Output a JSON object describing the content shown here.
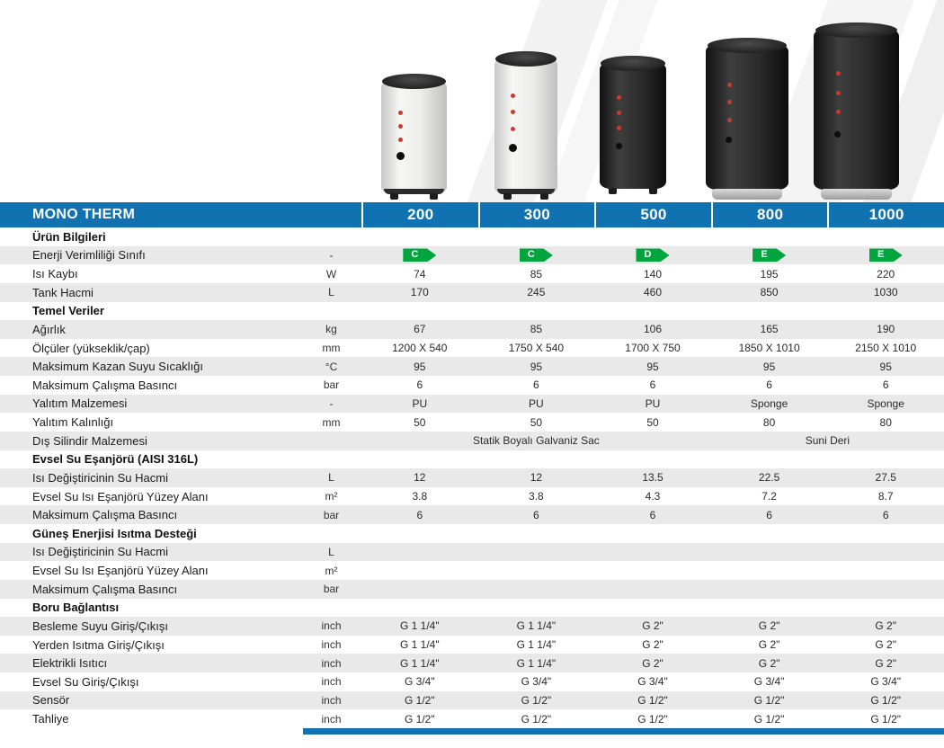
{
  "header": {
    "title": "MONO THERM",
    "models": [
      "200",
      "300",
      "500",
      "800",
      "1000"
    ],
    "accent_color": "#1172b1"
  },
  "energy": {
    "badge_color": "#00a53e"
  },
  "products": [
    {
      "model": "200",
      "body_color": "white"
    },
    {
      "model": "300",
      "body_color": "white"
    },
    {
      "model": "500",
      "body_color": "black"
    },
    {
      "model": "800",
      "body_color": "black"
    },
    {
      "model": "1000",
      "body_color": "black"
    }
  ],
  "table": {
    "rows": [
      {
        "type": "section",
        "label": "Ürün Bilgileri"
      },
      {
        "type": "energy",
        "label": "Enerji Verimliliği Sınıfı",
        "unit": "-",
        "classes": [
          "C",
          "C",
          "D",
          "E",
          "E"
        ]
      },
      {
        "type": "data",
        "label": "Isı Kaybı",
        "unit": "W",
        "values": [
          "74",
          "85",
          "140",
          "195",
          "220"
        ]
      },
      {
        "type": "data",
        "label": "Tank Hacmi",
        "unit": "L",
        "values": [
          "170",
          "245",
          "460",
          "850",
          "1030"
        ]
      },
      {
        "type": "section",
        "label": "Temel Veriler"
      },
      {
        "type": "data",
        "label": "Ağırlık",
        "unit": "kg",
        "values": [
          "67",
          "85",
          "106",
          "165",
          "190"
        ]
      },
      {
        "type": "data",
        "label": "Ölçüler (yükseklik/çap)",
        "unit": "mm",
        "values": [
          "1200 X 540",
          "1750 X 540",
          "1700 X 750",
          "1850 X 1010",
          "2150 X 1010"
        ]
      },
      {
        "type": "data",
        "label": "Maksimum Kazan Suyu Sıcaklığı",
        "unit": "°C",
        "values": [
          "95",
          "95",
          "95",
          "95",
          "95"
        ]
      },
      {
        "type": "data",
        "label": "Maksimum Çalışma Basıncı",
        "unit": "bar",
        "values": [
          "6",
          "6",
          "6",
          "6",
          "6"
        ]
      },
      {
        "type": "data",
        "label": "Yalıtım Malzemesi",
        "unit": "-",
        "values": [
          "PU",
          "PU",
          "PU",
          "Sponge",
          "Sponge"
        ]
      },
      {
        "type": "data",
        "label": "Yalıtım Kalınlığı",
        "unit": "mm",
        "values": [
          "50",
          "50",
          "50",
          "80",
          "80"
        ]
      },
      {
        "type": "span",
        "label": "Dış Silindir Malzemesi",
        "unit": "",
        "spans": [
          {
            "text": "Statik Boyalı Galvaniz Sac",
            "cols": 3
          },
          {
            "text": "Suni Deri",
            "cols": 2
          }
        ]
      },
      {
        "type": "section",
        "label": "Evsel Su Eşanjörü (AISI 316L)"
      },
      {
        "type": "data",
        "label": "Isı Değiştiricinin Su Hacmi",
        "unit": "L",
        "values": [
          "12",
          "12",
          "13.5",
          "22.5",
          "27.5"
        ]
      },
      {
        "type": "data",
        "label": "Evsel Su Isı Eşanjörü Yüzey Alanı",
        "unit": "m²",
        "values": [
          "3.8",
          "3.8",
          "4.3",
          "7.2",
          "8.7"
        ]
      },
      {
        "type": "data",
        "label": "Maksimum Çalışma Basıncı",
        "unit": "bar",
        "values": [
          "6",
          "6",
          "6",
          "6",
          "6"
        ]
      },
      {
        "type": "section",
        "label": "Güneş Enerjisi Isıtma Desteği"
      },
      {
        "type": "data",
        "label": "Isı Değiştiricinin Su Hacmi",
        "unit": "L",
        "values": [
          "",
          "",
          "",
          "",
          ""
        ]
      },
      {
        "type": "data",
        "label": "Evsel Su Isı Eşanjörü Yüzey Alanı",
        "unit": "m²",
        "values": [
          "",
          "",
          "",
          "",
          ""
        ]
      },
      {
        "type": "data",
        "label": "Maksimum Çalışma Basıncı",
        "unit": "bar",
        "values": [
          "",
          "",
          "",
          "",
          ""
        ]
      },
      {
        "type": "section",
        "label": "Boru Bağlantısı"
      },
      {
        "type": "data",
        "label": "Besleme Suyu Giriş/Çıkışı",
        "unit": "inch",
        "values": [
          "G 1 1/4\"",
          "G 1 1/4\"",
          "G 2\"",
          "G 2\"",
          "G 2\""
        ]
      },
      {
        "type": "data",
        "label": "Yerden Isıtma Giriş/Çıkışı",
        "unit": "inch",
        "values": [
          "G 1 1/4\"",
          "G 1 1/4\"",
          "G 2\"",
          "G 2\"",
          "G 2\""
        ]
      },
      {
        "type": "data",
        "label": "Elektrikli Isıtıcı",
        "unit": "inch",
        "values": [
          "G 1 1/4\"",
          "G 1 1/4\"",
          "G 2\"",
          "G 2\"",
          "G 2\""
        ]
      },
      {
        "type": "data",
        "label": "Evsel Su Giriş/Çıkışı",
        "unit": "inch",
        "values": [
          "G 3/4\"",
          "G 3/4\"",
          "G 3/4\"",
          "G 3/4\"",
          "G 3/4\""
        ]
      },
      {
        "type": "data",
        "label": "Sensör",
        "unit": "inch",
        "values": [
          "G 1/2\"",
          "G 1/2\"",
          "G 1/2\"",
          "G 1/2\"",
          "G 1/2\""
        ]
      },
      {
        "type": "data",
        "label": "Tahliye",
        "unit": "inch",
        "values": [
          "G 1/2\"",
          "G 1/2\"",
          "G 1/2\"",
          "G 1/2\"",
          "G 1/2\""
        ]
      }
    ]
  }
}
